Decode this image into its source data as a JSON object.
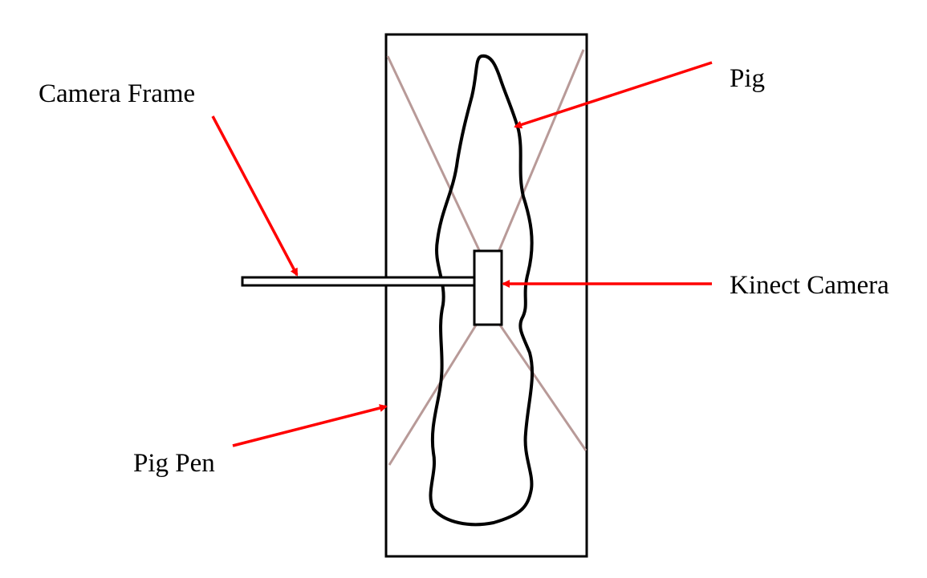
{
  "labels": {
    "camera_frame": "Camera Frame",
    "pig": "Pig",
    "kinect_camera": "Kinect Camera",
    "pig_pen": "Pig Pen"
  },
  "colors": {
    "outline": "#000000",
    "arrow": "#ff0000",
    "field_of_view": "#b89a98",
    "background": "#ffffff"
  }
}
